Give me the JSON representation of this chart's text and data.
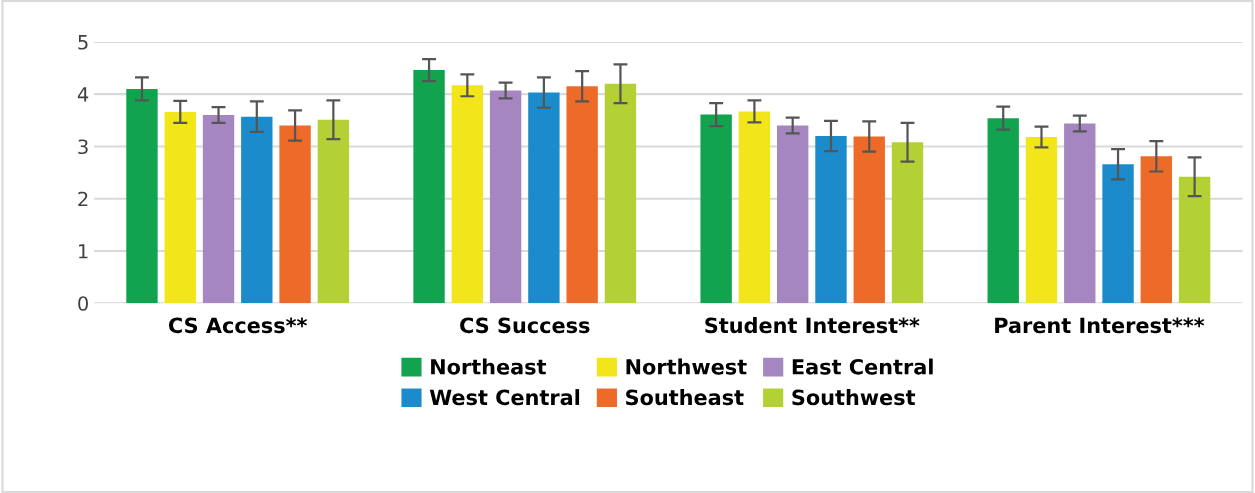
{
  "chart_data": {
    "type": "bar",
    "categories": [
      "CS Access**",
      "CS Success",
      "Student Interest**",
      "Parent Interest***"
    ],
    "series": [
      {
        "name": "Northeast",
        "color": "#11a34d",
        "values": [
          4.1,
          4.46,
          3.61,
          3.54
        ],
        "errors": [
          0.22,
          0.21,
          0.22,
          0.22
        ]
      },
      {
        "name": "Northwest",
        "color": "#f2e61a",
        "values": [
          3.66,
          4.17,
          3.67,
          3.18
        ],
        "errors": [
          0.21,
          0.21,
          0.21,
          0.2
        ]
      },
      {
        "name": "East Central",
        "color": "#a686c0",
        "values": [
          3.6,
          4.07,
          3.4,
          3.44
        ],
        "errors": [
          0.15,
          0.15,
          0.15,
          0.15
        ]
      },
      {
        "name": "West Central",
        "color": "#1b8bcb",
        "values": [
          3.57,
          4.03,
          3.2,
          2.66
        ],
        "errors": [
          0.29,
          0.29,
          0.29,
          0.29
        ]
      },
      {
        "name": "Southeast",
        "color": "#ee6a28",
        "values": [
          3.4,
          4.15,
          3.19,
          2.81
        ],
        "errors": [
          0.29,
          0.29,
          0.29,
          0.29
        ]
      },
      {
        "name": "Southwest",
        "color": "#b3d135",
        "values": [
          3.51,
          4.2,
          3.08,
          2.42
        ],
        "errors": [
          0.37,
          0.37,
          0.37,
          0.37
        ]
      }
    ],
    "ylim": [
      0,
      5
    ],
    "yticks": [
      0,
      1,
      2,
      3,
      4,
      5
    ],
    "grid": "y",
    "legend": "bottom"
  }
}
